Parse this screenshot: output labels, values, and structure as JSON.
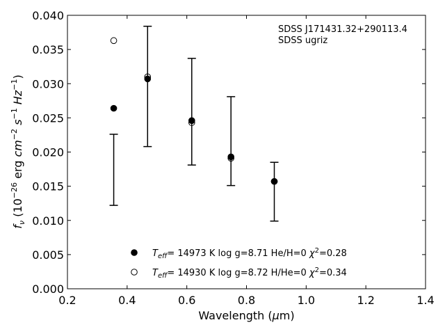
{
  "chart_data": {
    "type": "scatter",
    "xlabel": "Wavelength (μm)",
    "ylabel": "f_ν (10^-26 erg cm^-2 s^-1 Hz^-1)",
    "xlim": [
      0.2,
      1.4
    ],
    "ylim": [
      0.0,
      0.04
    ],
    "xticks": [
      "0.2",
      "0.4",
      "0.6",
      "0.8",
      "1.0",
      "1.2",
      "1.4"
    ],
    "yticks": [
      "0.000",
      "0.005",
      "0.010",
      "0.015",
      "0.020",
      "0.025",
      "0.030",
      "0.035",
      "0.040"
    ],
    "grid": false,
    "annotation": [
      "SDSS J171431.32+290113.4",
      "SDSS ugriz"
    ],
    "observed": {
      "x": [
        0.3551,
        0.4686,
        0.6166,
        0.748,
        0.8932
      ],
      "y": [
        0.0174,
        0.0296,
        0.0259,
        0.0216,
        0.0142
      ],
      "yerr": [
        0.0052,
        0.0088,
        0.0078,
        0.0065,
        0.0043
      ]
    },
    "series": [
      {
        "name": "T_eff= 14973 K  log g=8.71  He/H=0  χ²=0.28",
        "marker": "filled-circle",
        "x": [
          0.3551,
          0.4686,
          0.6166,
          0.748,
          0.8932
        ],
        "y": [
          0.0264,
          0.0307,
          0.0246,
          0.0193,
          0.0157
        ]
      },
      {
        "name": "T_eff= 14930 K  log g=8.72  H/He=0  χ²=0.34",
        "marker": "open-circle",
        "x": [
          0.3551,
          0.4686,
          0.6166,
          0.748,
          0.8932
        ],
        "y": [
          0.0363,
          0.031,
          0.0243,
          0.0191,
          0.0157
        ]
      }
    ],
    "legend_location": "lower-center"
  }
}
